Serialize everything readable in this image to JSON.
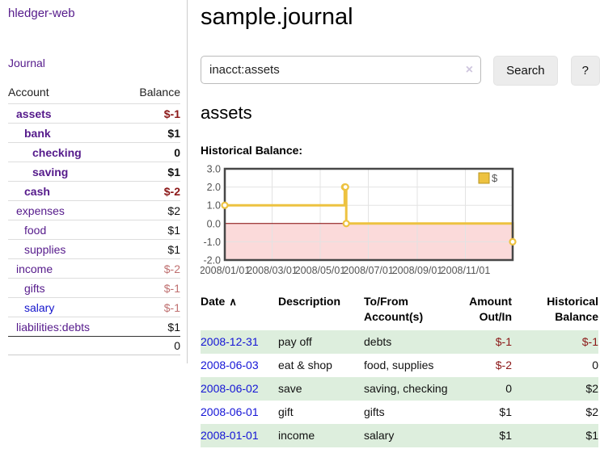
{
  "app": {
    "brand": "hledger-web"
  },
  "sidebar": {
    "journal_label": "Journal",
    "accounts_table": {
      "headers": {
        "account": "Account",
        "balance": "Balance"
      },
      "rows": [
        {
          "name": "assets",
          "indent": 1,
          "bold": true,
          "balance": "$-1",
          "balance_style": "neg-strong"
        },
        {
          "name": "bank",
          "indent": 2,
          "bold": true,
          "balance": "$1",
          "balance_style": "pos"
        },
        {
          "name": "checking",
          "indent": 3,
          "bold": true,
          "balance": "0",
          "balance_style": "pos"
        },
        {
          "name": "saving",
          "indent": 3,
          "bold": true,
          "balance": "$1",
          "balance_style": "pos"
        },
        {
          "name": "cash",
          "indent": 2,
          "bold": true,
          "balance": "$-2",
          "balance_style": "neg-strong"
        },
        {
          "name": "expenses",
          "indent": 1,
          "bold": false,
          "balance": "$2",
          "balance_style": "pos"
        },
        {
          "name": "food",
          "indent": 2,
          "bold": false,
          "balance": "$1",
          "balance_style": "pos"
        },
        {
          "name": "supplies",
          "indent": 2,
          "bold": false,
          "balance": "$1",
          "balance_style": "pos"
        },
        {
          "name": "income",
          "indent": 1,
          "bold": false,
          "balance": "$-2",
          "balance_style": "neg-soft"
        },
        {
          "name": "gifts",
          "indent": 2,
          "bold": false,
          "balance": "$-1",
          "balance_style": "neg-soft"
        },
        {
          "name": "salary",
          "indent": 2,
          "bold": false,
          "balance": "$-1",
          "balance_style": "neg-soft",
          "link_color": "blue"
        },
        {
          "name": "liabilities:debts",
          "indent": 1,
          "bold": false,
          "balance": "$1",
          "balance_style": "pos"
        }
      ],
      "total": "0"
    }
  },
  "header": {
    "title": "sample.journal"
  },
  "search": {
    "value": "inacct:assets",
    "clear_icon": "×",
    "button_label": "Search",
    "help_label": "?"
  },
  "account_page": {
    "heading": "assets",
    "chart_label": "Historical Balance:"
  },
  "chart_data": {
    "type": "line",
    "line_style": "step-after",
    "title": "Historical Balance:",
    "legend_label": "$",
    "legend_position": "top-right",
    "y_ticks": [
      3.0,
      2.0,
      1.0,
      0.0,
      -1.0,
      -2.0
    ],
    "ylim": [
      -2,
      3
    ],
    "x_ticks": [
      "2008/01/01",
      "2008/03/01",
      "2008/05/01",
      "2008/07/01",
      "2008/09/01",
      "2008/11/01"
    ],
    "x_tick_days": [
      0,
      60,
      121,
      182,
      244,
      305
    ],
    "xlim_days": [
      0,
      365
    ],
    "points": [
      {
        "date": "2008-01-01",
        "day": 0,
        "value": 1
      },
      {
        "date": "2008-06-01",
        "day": 152,
        "value": 2
      },
      {
        "date": "2008-06-02",
        "day": 153,
        "value": 2
      },
      {
        "date": "2008-06-03",
        "day": 154,
        "value": 0
      },
      {
        "date": "2008-12-31",
        "day": 365,
        "value": -1
      }
    ],
    "series_color": "#edc240",
    "negative_region_color": "#fbdada",
    "zero_line_color": "#800000",
    "grid_color": "#e3e3e3",
    "border_color": "#474747"
  },
  "register_table": {
    "headers": {
      "date": "Date",
      "sort_icon": "∧",
      "description": "Description",
      "tofrom": [
        "To/From",
        "Account(s)"
      ],
      "amount": [
        "Amount",
        "Out/In"
      ],
      "historical": [
        "Historical",
        "Balance"
      ]
    },
    "rows": [
      {
        "date": "2008-12-31",
        "description": "pay off",
        "accounts": "debts",
        "amount": "$-1",
        "amount_neg": true,
        "balance": "$-1",
        "balance_neg": true,
        "shaded": true
      },
      {
        "date": "2008-06-03",
        "description": "eat & shop",
        "accounts": "food, supplies",
        "amount": "$-2",
        "amount_neg": true,
        "balance": "0",
        "balance_neg": false,
        "shaded": false
      },
      {
        "date": "2008-06-02",
        "description": "save",
        "accounts": "saving, checking",
        "amount": "0",
        "amount_neg": false,
        "balance": "$2",
        "balance_neg": false,
        "shaded": true
      },
      {
        "date": "2008-06-01",
        "description": "gift",
        "accounts": "gifts",
        "amount": "$1",
        "amount_neg": false,
        "balance": "$2",
        "balance_neg": false,
        "shaded": false
      },
      {
        "date": "2008-01-01",
        "description": "income",
        "accounts": "salary",
        "amount": "$1",
        "amount_neg": false,
        "balance": "$1",
        "balance_neg": false,
        "shaded": true
      }
    ]
  },
  "colors": {
    "link_purple": "#551a8b",
    "link_blue": "#1414cc",
    "negative_strong": "#8b1717",
    "negative_soft": "#bf7070",
    "row_shade_green": "#ddeedd",
    "chart_series_gold": "#edc240",
    "chart_negative_region": "#fbdada",
    "chart_zero_line": "#800000"
  }
}
